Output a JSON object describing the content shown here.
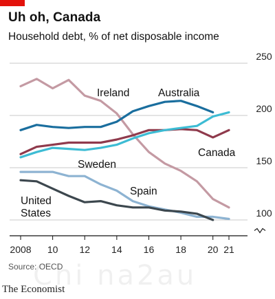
{
  "header": {
    "title": "Uh oh, Canada",
    "subtitle": "Household debt, % of net disposable income"
  },
  "footer": {
    "source": "Source: OECD",
    "brand": "The Economist",
    "watermark": "Chi na2au"
  },
  "colors": {
    "accent": "#e3120b",
    "grid": "#c9c9c9",
    "axis": "#111111"
  },
  "chart_data": {
    "type": "line",
    "title": "Uh oh, Canada",
    "subtitle": "Household debt, % of net disposable income",
    "x": [
      2008,
      2009,
      2010,
      2011,
      2012,
      2013,
      2014,
      2015,
      2016,
      2017,
      2018,
      2019,
      2020,
      2021
    ],
    "x_ticks": [
      {
        "value": 2008,
        "label": "2008"
      },
      {
        "value": 2010,
        "label": "10"
      },
      {
        "value": 2012,
        "label": "12"
      },
      {
        "value": 2014,
        "label": "14"
      },
      {
        "value": 2016,
        "label": "16"
      },
      {
        "value": 2018,
        "label": "18"
      },
      {
        "value": 2020,
        "label": "20"
      },
      {
        "value": 2021,
        "label": "21"
      }
    ],
    "y_ticks": [
      100,
      150,
      200,
      250
    ],
    "ylim": [
      100,
      250
    ],
    "y_axis_break": true,
    "grid": true,
    "series": [
      {
        "name": "Ireland",
        "color": "#c49aa3",
        "values": [
          228,
          235,
          226,
          234,
          219,
          214,
          202,
          182,
          165,
          154,
          147,
          137,
          120,
          112
        ]
      },
      {
        "name": "Australia",
        "color": "#1a6e9e",
        "values": [
          186,
          191,
          189,
          188,
          189,
          189,
          194,
          204,
          209,
          213,
          214,
          209,
          203,
          null
        ]
      },
      {
        "name": "Canada",
        "color": "#8f3a4c",
        "values": [
          163,
          170,
          172,
          174,
          174,
          174,
          177,
          181,
          186,
          186,
          187,
          186,
          179,
          186
        ]
      },
      {
        "name": "Sweden",
        "color": "#3dbcd4",
        "values": [
          160,
          165,
          169,
          168,
          167,
          169,
          172,
          178,
          183,
          186,
          188,
          190,
          199,
          203
        ]
      },
      {
        "name": "Spain",
        "color": "#8db3d2",
        "values": [
          146,
          146,
          146,
          142,
          142,
          134,
          128,
          118,
          113,
          110,
          107,
          103,
          103,
          101
        ]
      },
      {
        "name": "United States",
        "color": "#3c474e",
        "values": [
          138,
          137,
          130,
          123,
          117,
          118,
          114,
          112,
          112,
          109,
          108,
          106,
          100,
          null
        ]
      }
    ],
    "label_lines": {
      "Ireland": [
        "Ireland"
      ],
      "Australia": [
        "Australia"
      ],
      "Canada": [
        "Canada"
      ],
      "Sweden": [
        "Sweden"
      ],
      "Spain": [
        "Spain"
      ],
      "United States": [
        "United",
        "States"
      ]
    }
  }
}
